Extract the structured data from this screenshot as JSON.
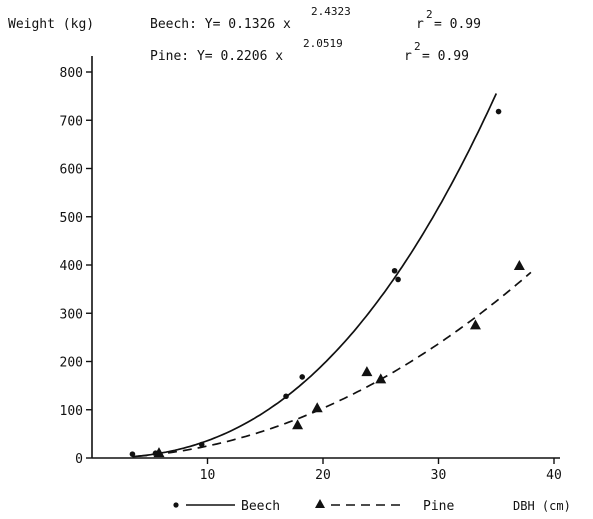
{
  "chart_data": {
    "type": "scatter",
    "ylabel": "Weight (kg)",
    "xlabel": "DBH (cm)",
    "xlim": [
      0,
      40
    ],
    "ylim": [
      0,
      800
    ],
    "xticks": [
      10,
      20,
      30,
      40
    ],
    "yticks": [
      0,
      100,
      200,
      300,
      400,
      500,
      600,
      700,
      800
    ],
    "grid": false,
    "legend_position": "bottom",
    "annotations": [
      {
        "label": "Beech: Y= 0.1326 x",
        "exponent": "2.4323",
        "r_label": "r",
        "r_exponent": "2",
        "r_value": "= 0.99"
      },
      {
        "label": "Pine: Y= 0.2206 x",
        "exponent": "2.0519",
        "r_label": "r",
        "r_exponent": "2",
        "r_value": "= 0.99"
      }
    ],
    "series": [
      {
        "name": "Beech",
        "marker": "circle",
        "line": "solid",
        "fit": {
          "a": 0.1326,
          "b": 2.4323,
          "x_range": [
            3.5,
            35
          ]
        },
        "x": [
          3.5,
          5.5,
          9.5,
          16.8,
          18.2,
          26.2,
          26.5,
          35.2
        ],
        "y": [
          8,
          10,
          28,
          128,
          168,
          388,
          370,
          718
        ]
      },
      {
        "name": "Pine",
        "marker": "triangle",
        "line": "dashed",
        "fit": {
          "a": 0.2206,
          "b": 2.0519,
          "x_range": [
            4,
            38
          ]
        },
        "x": [
          5.8,
          17.8,
          19.5,
          23.8,
          25,
          33.2,
          37
        ],
        "y": [
          10,
          68,
          103,
          178,
          163,
          275,
          398
        ]
      }
    ]
  }
}
